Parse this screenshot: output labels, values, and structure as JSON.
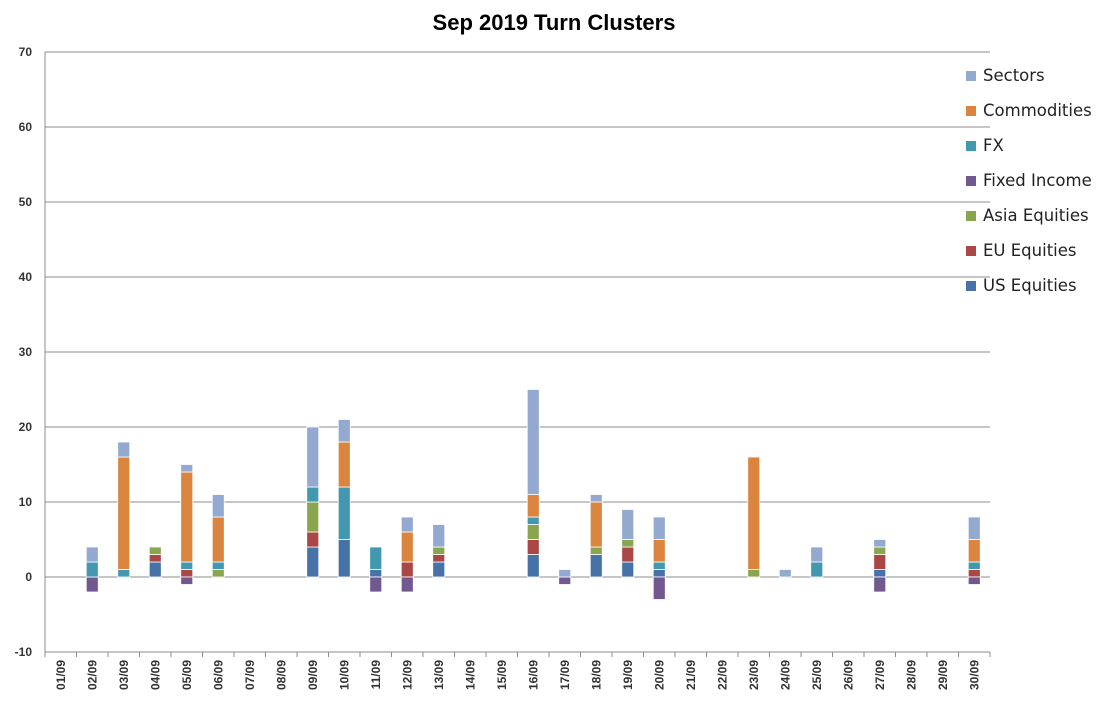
{
  "chart_data": {
    "type": "bar",
    "stacked": true,
    "title": "Sep 2019 Turn Clusters",
    "xlabel": "",
    "ylabel": "",
    "ylim": [
      -10,
      70
    ],
    "yticks": [
      -10,
      0,
      10,
      20,
      30,
      40,
      50,
      60,
      70
    ],
    "grid": true,
    "legend_position": "right",
    "categories": [
      "01/09",
      "02/09",
      "03/09",
      "04/09",
      "05/09",
      "06/09",
      "07/09",
      "08/09",
      "09/09",
      "10/09",
      "11/09",
      "12/09",
      "13/09",
      "14/09",
      "15/09",
      "16/09",
      "17/09",
      "18/09",
      "19/09",
      "20/09",
      "21/09",
      "22/09",
      "23/09",
      "24/09",
      "25/09",
      "26/09",
      "27/09",
      "28/09",
      "29/09",
      "30/09"
    ],
    "series": [
      {
        "name": "US Equities",
        "color": "#4672A8",
        "values": [
          0,
          0,
          0,
          2,
          0,
          0,
          0,
          0,
          4,
          5,
          1,
          0,
          2,
          0,
          0,
          3,
          0,
          3,
          2,
          1,
          0,
          0,
          0,
          0,
          0,
          0,
          1,
          0,
          0,
          0
        ]
      },
      {
        "name": "EU Equities",
        "color": "#AA4643",
        "values": [
          0,
          0,
          0,
          1,
          1,
          0,
          0,
          0,
          2,
          0,
          0,
          2,
          1,
          0,
          0,
          2,
          0,
          0,
          2,
          0,
          0,
          0,
          0,
          0,
          0,
          0,
          2,
          0,
          0,
          1
        ]
      },
      {
        "name": "Asia Equities",
        "color": "#89A54E",
        "values": [
          0,
          0,
          0,
          1,
          0,
          1,
          0,
          0,
          4,
          0,
          0,
          0,
          1,
          0,
          0,
          2,
          0,
          1,
          1,
          0,
          0,
          0,
          1,
          0,
          0,
          0,
          1,
          0,
          0,
          0
        ]
      },
      {
        "name": "Fixed Income",
        "color": "#71588F",
        "values": [
          0,
          -2,
          0,
          0,
          -1,
          0,
          0,
          0,
          0,
          0,
          -2,
          -2,
          0,
          0,
          0,
          0,
          -1,
          0,
          0,
          -3,
          0,
          0,
          0,
          0,
          0,
          0,
          -2,
          0,
          0,
          -1
        ]
      },
      {
        "name": "FX",
        "color": "#4198AF",
        "values": [
          0,
          2,
          1,
          0,
          1,
          1,
          0,
          0,
          2,
          7,
          3,
          0,
          0,
          0,
          0,
          1,
          0,
          0,
          0,
          1,
          0,
          0,
          0,
          0,
          2,
          0,
          0,
          0,
          0,
          1
        ]
      },
      {
        "name": "Commodities",
        "color": "#DB843D",
        "values": [
          0,
          0,
          15,
          0,
          12,
          6,
          0,
          0,
          0,
          6,
          0,
          4,
          0,
          0,
          0,
          3,
          0,
          6,
          0,
          3,
          0,
          0,
          15,
          0,
          0,
          0,
          0,
          0,
          0,
          3
        ]
      },
      {
        "name": "Sectors",
        "color": "#93A9CF",
        "values": [
          0,
          2,
          2,
          0,
          1,
          3,
          0,
          0,
          8,
          3,
          0,
          2,
          3,
          0,
          0,
          14,
          1,
          1,
          4,
          3,
          0,
          0,
          0,
          1,
          2,
          0,
          1,
          0,
          0,
          3
        ]
      }
    ]
  }
}
